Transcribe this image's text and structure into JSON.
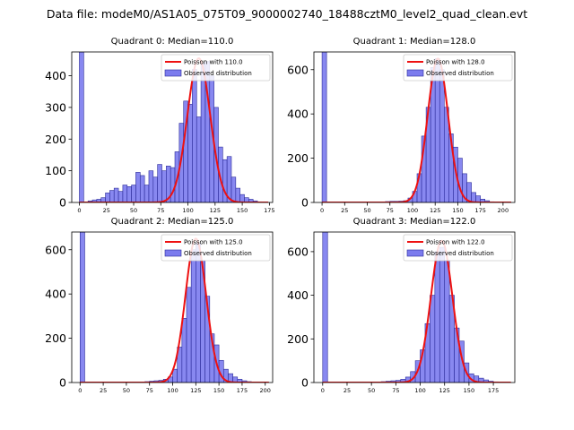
{
  "figure": {
    "suptitle": "Data file: modeM0/AS1A05_075T09_9000002740_18488cztM0_level2_quad_clean.evt"
  },
  "colors": {
    "bar_fill": "#7b7bee",
    "bar_edge": "#2b2b99",
    "curve": "#ee1111"
  },
  "legend": {
    "observed_label": "Observed distribution"
  },
  "chart_data": [
    {
      "type": "bar",
      "title": "Quadrant 0: Median=110.0",
      "poisson_label": "Poisson with 110.0",
      "poisson_mean": 110.0,
      "poisson_peak": 455,
      "bin_width": 4,
      "xlim": [
        -7,
        178
      ],
      "ylim": [
        0,
        475
      ],
      "xticks": [
        0,
        25,
        50,
        75,
        100,
        125,
        150,
        175
      ],
      "yticks": [
        0,
        100,
        200,
        300,
        400
      ],
      "bins": [
        [
          0,
          475
        ],
        [
          4,
          0
        ],
        [
          8,
          5
        ],
        [
          12,
          8
        ],
        [
          16,
          10
        ],
        [
          20,
          15
        ],
        [
          24,
          30
        ],
        [
          28,
          38
        ],
        [
          32,
          45
        ],
        [
          36,
          35
        ],
        [
          40,
          55
        ],
        [
          44,
          50
        ],
        [
          48,
          55
        ],
        [
          52,
          95
        ],
        [
          56,
          85
        ],
        [
          60,
          55
        ],
        [
          64,
          100
        ],
        [
          68,
          80
        ],
        [
          72,
          120
        ],
        [
          76,
          100
        ],
        [
          80,
          115
        ],
        [
          84,
          110
        ],
        [
          88,
          160
        ],
        [
          92,
          250
        ],
        [
          96,
          320
        ],
        [
          100,
          310
        ],
        [
          104,
          420
        ],
        [
          108,
          270
        ],
        [
          112,
          440
        ],
        [
          116,
          445
        ],
        [
          120,
          400
        ],
        [
          124,
          300
        ],
        [
          128,
          175
        ],
        [
          132,
          135
        ],
        [
          136,
          145
        ],
        [
          140,
          80
        ],
        [
          144,
          45
        ],
        [
          148,
          25
        ],
        [
          152,
          15
        ],
        [
          156,
          10
        ],
        [
          160,
          5
        ],
        [
          164,
          2
        ]
      ]
    },
    {
      "type": "bar",
      "title": "Quadrant 1: Median=128.0",
      "poisson_label": "Poisson with 128.0",
      "poisson_mean": 128.0,
      "poisson_peak": 650,
      "bin_width": 5,
      "xlim": [
        -9,
        213
      ],
      "ylim": [
        0,
        680
      ],
      "xticks": [
        0,
        25,
        50,
        75,
        100,
        125,
        150,
        175,
        200
      ],
      "yticks": [
        0,
        200,
        400,
        600
      ],
      "bins": [
        [
          0,
          680
        ],
        [
          65,
          2
        ],
        [
          70,
          4
        ],
        [
          75,
          5
        ],
        [
          80,
          5
        ],
        [
          85,
          6
        ],
        [
          90,
          8
        ],
        [
          95,
          20
        ],
        [
          100,
          50
        ],
        [
          105,
          130
        ],
        [
          110,
          300
        ],
        [
          115,
          430
        ],
        [
          120,
          610
        ],
        [
          125,
          650
        ],
        [
          130,
          600
        ],
        [
          135,
          430
        ],
        [
          140,
          310
        ],
        [
          145,
          250
        ],
        [
          150,
          200
        ],
        [
          155,
          130
        ],
        [
          160,
          90
        ],
        [
          165,
          45
        ],
        [
          170,
          30
        ],
        [
          175,
          15
        ],
        [
          180,
          8
        ],
        [
          185,
          3
        ],
        [
          190,
          1
        ]
      ]
    },
    {
      "type": "bar",
      "title": "Quadrant 2: Median=125.0",
      "poisson_label": "Poisson with 125.0",
      "poisson_mean": 125.0,
      "poisson_peak": 650,
      "bin_width": 5,
      "xlim": [
        -9,
        208
      ],
      "ylim": [
        0,
        680
      ],
      "xticks": [
        0,
        25,
        50,
        75,
        100,
        125,
        150,
        175,
        200
      ],
      "yticks": [
        0,
        200,
        400,
        600
      ],
      "bins": [
        [
          0,
          680
        ],
        [
          70,
          4
        ],
        [
          75,
          6
        ],
        [
          80,
          8
        ],
        [
          85,
          10
        ],
        [
          90,
          15
        ],
        [
          95,
          25
        ],
        [
          100,
          60
        ],
        [
          105,
          160
        ],
        [
          110,
          290
        ],
        [
          115,
          430
        ],
        [
          120,
          600
        ],
        [
          125,
          630
        ],
        [
          130,
          550
        ],
        [
          135,
          390
        ],
        [
          140,
          220
        ],
        [
          145,
          170
        ],
        [
          150,
          100
        ],
        [
          155,
          60
        ],
        [
          160,
          40
        ],
        [
          165,
          25
        ],
        [
          170,
          15
        ],
        [
          175,
          8
        ],
        [
          180,
          4
        ],
        [
          185,
          2
        ],
        [
          190,
          1
        ]
      ]
    },
    {
      "type": "bar",
      "title": "Quadrant 3: Median=122.0",
      "poisson_label": "Poisson with 122.0",
      "poisson_mean": 122.0,
      "poisson_peak": 650,
      "bin_width": 5,
      "xlim": [
        -9,
        197
      ],
      "ylim": [
        0,
        690
      ],
      "xticks": [
        0,
        25,
        50,
        75,
        100,
        125,
        150,
        175
      ],
      "yticks": [
        0,
        200,
        400,
        600
      ],
      "bins": [
        [
          0,
          690
        ],
        [
          60,
          4
        ],
        [
          65,
          6
        ],
        [
          70,
          8
        ],
        [
          75,
          10
        ],
        [
          80,
          15
        ],
        [
          85,
          25
        ],
        [
          90,
          50
        ],
        [
          95,
          100
        ],
        [
          100,
          150
        ],
        [
          105,
          270
        ],
        [
          110,
          400
        ],
        [
          115,
          600
        ],
        [
          120,
          620
        ],
        [
          125,
          560
        ],
        [
          130,
          400
        ],
        [
          135,
          250
        ],
        [
          140,
          190
        ],
        [
          145,
          90
        ],
        [
          150,
          40
        ],
        [
          155,
          30
        ],
        [
          160,
          20
        ],
        [
          165,
          12
        ],
        [
          170,
          6
        ],
        [
          175,
          3
        ],
        [
          180,
          1
        ]
      ]
    }
  ]
}
